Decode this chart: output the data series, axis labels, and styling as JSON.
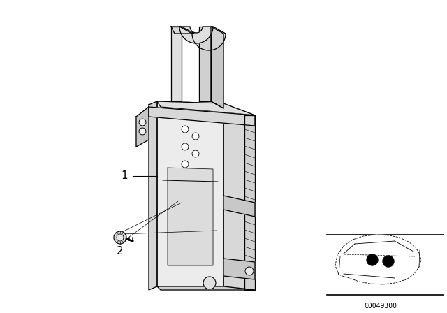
{
  "background_color": "#ffffff",
  "line_color": "#000000",
  "label_1_text": "1",
  "label_2_text": "2",
  "part_number": "C0049300",
  "fig_width": 6.4,
  "fig_height": 4.48,
  "dpi": 100
}
